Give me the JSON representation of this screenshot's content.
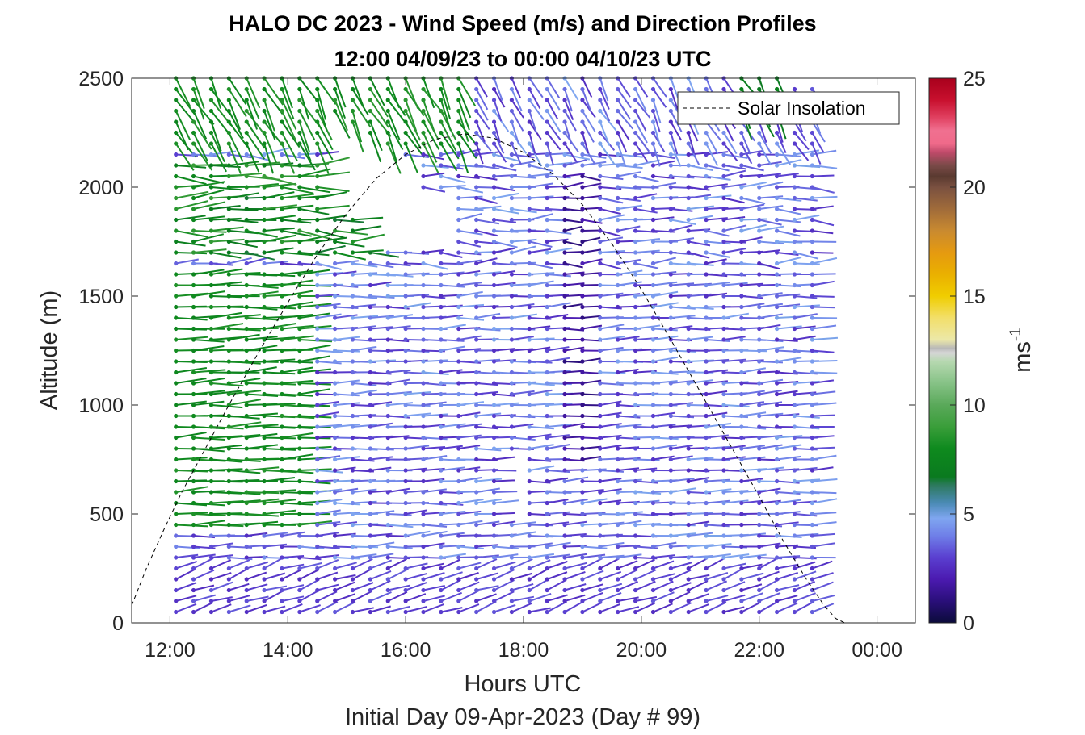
{
  "chart_data": {
    "type": "scatter",
    "title": "HALO DC 2023 - Wind Speed (m/s) and Direction Profiles",
    "subtitle": "12:00 04/09/23 to 00:00 04/10/23  UTC",
    "xlabel": "Hours UTC",
    "ylabel": "Altitude (m)",
    "footnote": "Initial Day 09-Apr-2023 (Day # 99)",
    "xlim": [
      11.35,
      24.65
    ],
    "ylim": [
      0,
      2500
    ],
    "x_ticks": [
      12,
      14,
      16,
      18,
      20,
      22,
      24
    ],
    "x_tick_labels": [
      "12:00",
      "14:00",
      "16:00",
      "18:00",
      "20:00",
      "22:00",
      "00:00"
    ],
    "y_ticks": [
      0,
      500,
      1000,
      1500,
      2000,
      2500
    ],
    "y_tick_labels": [
      "0",
      "500",
      "1000",
      "1500",
      "2000",
      "2500"
    ],
    "grid": false,
    "legend": {
      "position": "top-right",
      "entries": [
        "Solar Insolation"
      ]
    },
    "colorbar": {
      "label": "ms",
      "label_exponent": "-1",
      "range": [
        0,
        25
      ],
      "ticks": [
        0,
        5,
        10,
        15,
        20,
        25
      ],
      "tick_labels": [
        "0",
        "5",
        "10",
        "15",
        "20",
        "25"
      ],
      "colors": [
        [
          0,
          "#0b0b3a"
        ],
        [
          1,
          "#2a0f7a"
        ],
        [
          2,
          "#4b1ab0"
        ],
        [
          3,
          "#5a3fd0"
        ],
        [
          4,
          "#6f7fe8"
        ],
        [
          4.8,
          "#7fa6f0"
        ],
        [
          5.5,
          "#4a8ab5"
        ],
        [
          6.3,
          "#2e7a60"
        ],
        [
          6.7,
          "#0a7a1f"
        ],
        [
          8,
          "#0e8a1e"
        ],
        [
          9,
          "#3a9e3a"
        ],
        [
          10,
          "#5aa95a"
        ],
        [
          11,
          "#86c286"
        ],
        [
          12,
          "#b6d8b0"
        ],
        [
          12.4,
          "#d6d6d6"
        ],
        [
          12.6,
          "#b8b8b8"
        ],
        [
          13,
          "#ece8a8"
        ],
        [
          14,
          "#f2df6a"
        ],
        [
          15,
          "#f0cd00"
        ],
        [
          16,
          "#eab000"
        ],
        [
          17,
          "#e59a10"
        ],
        [
          18,
          "#c98a30"
        ],
        [
          19,
          "#a06b3a"
        ],
        [
          20,
          "#7a5040"
        ],
        [
          20.5,
          "#5a3a30"
        ],
        [
          21,
          "#7a4a48"
        ],
        [
          21.6,
          "#c04a6a"
        ],
        [
          22,
          "#f06a8a"
        ],
        [
          22.6,
          "#f07090"
        ],
        [
          23.2,
          "#e04060"
        ],
        [
          24,
          "#c8102e"
        ],
        [
          25,
          "#a8001c"
        ]
      ]
    },
    "solar_insolation": {
      "name": "Solar Insolation",
      "x": [
        11.35,
        11.6,
        11.9,
        12.2,
        12.6,
        13.0,
        13.5,
        14.0,
        14.5,
        15.0,
        15.5,
        16.0,
        16.5,
        17.0,
        17.5,
        18.0,
        18.5,
        19.0,
        19.5,
        20.0,
        20.5,
        21.0,
        21.5,
        22.0,
        22.4,
        22.8,
        23.1,
        23.3,
        23.45,
        24.65
      ],
      "y": [
        80,
        250,
        430,
        600,
        800,
        1000,
        1240,
        1470,
        1690,
        1880,
        2040,
        2150,
        2220,
        2245,
        2225,
        2160,
        2060,
        1920,
        1740,
        1530,
        1300,
        1060,
        820,
        580,
        380,
        200,
        80,
        20,
        0,
        0
      ]
    },
    "wind_barbs": {
      "description_note": "",
      "times_hours": [
        12.1,
        12.4,
        12.7,
        13.0,
        13.3,
        13.6,
        13.9,
        14.2,
        14.5,
        14.8,
        15.1,
        15.4,
        15.7,
        16.0,
        16.3,
        16.6,
        16.9,
        17.2,
        17.5,
        17.8,
        18.1,
        18.4,
        18.7,
        19.0,
        19.3,
        19.6,
        19.9,
        20.2,
        20.5,
        20.8,
        21.1,
        21.4,
        21.7,
        22.0,
        22.3,
        22.6,
        22.9
      ],
      "altitude_step_m": 50,
      "altitude_range_m": [
        50,
        2500
      ]
    }
  }
}
